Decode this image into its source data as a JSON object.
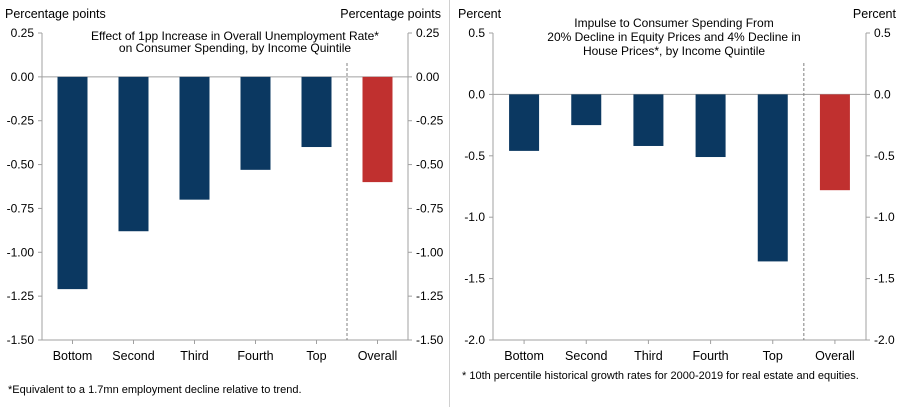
{
  "colors": {
    "quintile": "#0b3861",
    "overall": "#c0302f",
    "axis": "#a0a0a0",
    "separator": "#808080"
  },
  "footnotes": {
    "left": "*Equivalent to a 1.7mn employment decline relative to trend.",
    "right": "* 10th percentile historical growth rates for 2000-2019 for real estate and equities."
  },
  "chart_data": [
    {
      "type": "bar",
      "title": "Effect of 1pp Increase in Overall Unemployment Rate* on Consumer Spending, by Income Quintile",
      "title_lines": [
        "Effect of 1pp Increase in Overall Unemployment Rate*",
        "on Consumer Spending, by Income Quintile"
      ],
      "ylabel_left": "Percentage points",
      "ylabel_right": "Percentage points",
      "categories": [
        "Bottom",
        "Second",
        "Third",
        "Fourth",
        "Top",
        "Overall"
      ],
      "values": [
        -1.21,
        -0.88,
        -0.7,
        -0.53,
        -0.4,
        -0.6
      ],
      "highlight_index": 5,
      "ylim": [
        -1.5,
        0.25
      ],
      "yticks": [
        "0.25",
        "0.00",
        "-0.25",
        "-0.50",
        "-0.75",
        "-1.00",
        "-1.25",
        "-1.50"
      ],
      "ytick_values": [
        0.25,
        0.0,
        -0.25,
        -0.5,
        -0.75,
        -1.0,
        -1.25,
        -1.5
      ],
      "grid": false,
      "separator_before_last": true
    },
    {
      "type": "bar",
      "title": "Impulse to Consumer Spending From 20% Decline in Equity Prices and 4% Decline in House Prices*, by Income Quintile",
      "title_lines": [
        "Impulse to Consumer Spending From",
        "20% Decline in Equity Prices and 4% Decline in",
        "House Prices*, by Income Quintile"
      ],
      "ylabel_left": "Percent",
      "ylabel_right": "Percent",
      "categories": [
        "Bottom",
        "Second",
        "Third",
        "Fourth",
        "Top",
        "Overall"
      ],
      "values": [
        -0.46,
        -0.25,
        -0.42,
        -0.51,
        -1.36,
        -0.78
      ],
      "highlight_index": 5,
      "ylim": [
        -2.0,
        0.5
      ],
      "yticks": [
        "0.5",
        "0.0",
        "-0.5",
        "-1.0",
        "-1.5",
        "-2.0"
      ],
      "ytick_values": [
        0.5,
        0.0,
        -0.5,
        -1.0,
        -1.5,
        -2.0
      ],
      "grid": false,
      "separator_before_last": true
    }
  ]
}
